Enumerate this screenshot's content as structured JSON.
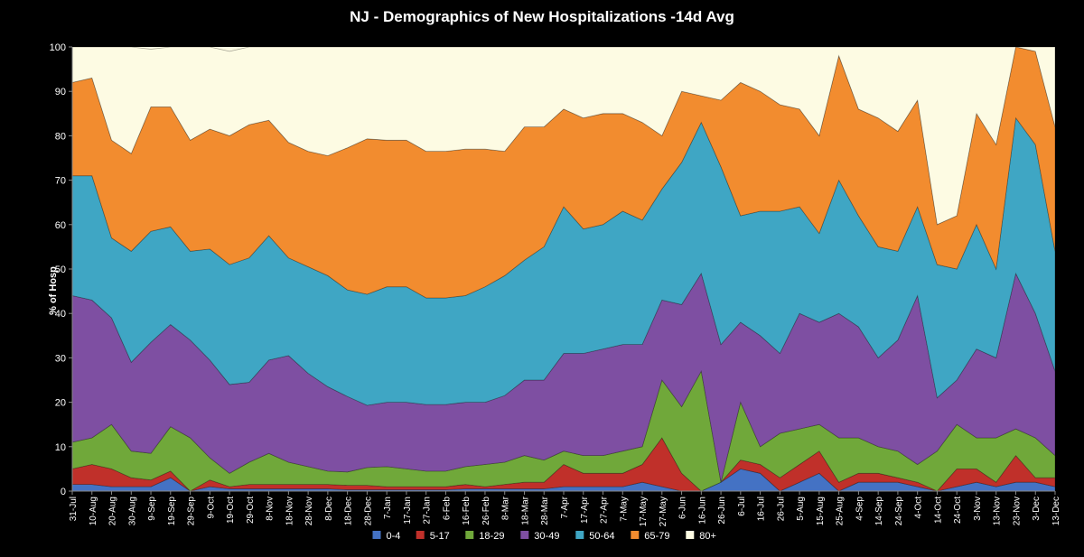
{
  "chart_data": {
    "type": "area",
    "stacked": true,
    "title": "NJ - Demographics of New Hospitalizations -14d Avg",
    "xlabel": "",
    "ylabel": "% of Hosp",
    "ylim": [
      0,
      100
    ],
    "yticks": [
      0,
      10,
      20,
      30,
      40,
      50,
      60,
      70,
      80,
      90,
      100
    ],
    "grid": false,
    "legend_position": "bottom",
    "x_tick_labels": [
      "31-Jul",
      "10-Aug",
      "20-Aug",
      "30-Aug",
      "9-Sep",
      "19-Sep",
      "29-Sep",
      "9-Oct",
      "19-Oct",
      "29-Oct",
      "8-Nov",
      "18-Nov",
      "28-Nov",
      "8-Dec",
      "18-Dec",
      "28-Dec",
      "7-Jan",
      "17-Jan",
      "27-Jan",
      "6-Feb",
      "16-Feb",
      "26-Feb",
      "8-Mar",
      "18-Mar",
      "28-Mar",
      "7-Apr",
      "17-Apr",
      "27-Apr",
      "7-May",
      "17-May",
      "27-May",
      "6-Jun",
      "16-Jun",
      "26-Jun",
      "6-Jul",
      "16-Jul",
      "26-Jul",
      "5-Aug",
      "15-Aug",
      "25-Aug",
      "4-Sep",
      "14-Sep",
      "24-Sep",
      "4-Oct",
      "14-Oct",
      "24-Oct",
      "3-Nov",
      "13-Nov",
      "23-Nov",
      "3-Dec",
      "13-Dec"
    ],
    "series": [
      {
        "name": "0-4",
        "color": "#4472C4",
        "values": [
          1.5,
          1.5,
          1,
          1,
          1,
          3,
          0,
          1,
          0.5,
          0.5,
          0.5,
          0.5,
          0.5,
          0.5,
          0.3,
          0.3,
          0.3,
          0.3,
          0.3,
          0.3,
          0.5,
          0.5,
          0.5,
          0.5,
          0.5,
          1,
          1,
          1,
          1,
          2,
          1,
          0,
          0,
          2,
          5,
          4,
          0,
          2,
          4,
          0,
          2,
          2,
          2,
          1,
          0,
          1,
          2,
          1,
          2,
          2,
          1
        ]
      },
      {
        "name": "5-17",
        "color": "#C0302A",
        "values": [
          3.5,
          4.5,
          4,
          2,
          1.5,
          1.5,
          0,
          1.5,
          0.5,
          1,
          1,
          1,
          1,
          1,
          1,
          1,
          0.7,
          0.7,
          0.7,
          0.7,
          1,
          0.5,
          1,
          1.5,
          1.5,
          5,
          3,
          3,
          3,
          4,
          11,
          4,
          0,
          0,
          2,
          2,
          3,
          4,
          5,
          2,
          2,
          2,
          1,
          1,
          0,
          4,
          3,
          1,
          6,
          1,
          2
        ]
      },
      {
        "name": "18-29",
        "color": "#70A83A",
        "values": [
          6,
          6,
          10,
          6,
          6,
          10,
          12,
          5,
          3,
          5,
          7,
          5,
          4,
          3,
          3,
          4,
          4.5,
          4,
          3.5,
          3.5,
          4,
          5,
          5,
          6,
          5,
          3,
          4,
          4,
          5,
          4,
          13,
          15,
          27,
          0,
          13,
          4,
          10,
          8,
          6,
          10,
          8,
          6,
          6,
          4,
          9,
          10,
          7,
          10,
          6,
          9,
          5
        ]
      },
      {
        "name": "30-49",
        "color": "#7E4FA2",
        "values": [
          33,
          31,
          24,
          20,
          25,
          23,
          22,
          22,
          20,
          18,
          21,
          24,
          21,
          19,
          17,
          14,
          14.5,
          15,
          15,
          15,
          14.5,
          14,
          15,
          17,
          18,
          22,
          23,
          24,
          24,
          23,
          18,
          23,
          22,
          31,
          18,
          25,
          18,
          26,
          23,
          28,
          25,
          20,
          25,
          38,
          12,
          10,
          20,
          18,
          35,
          28,
          19
        ]
      },
      {
        "name": "50-64",
        "color": "#3FA6C4",
        "values": [
          27,
          28,
          18,
          25,
          25,
          22,
          20,
          25,
          27,
          28,
          28,
          22,
          24,
          25,
          24,
          25,
          26,
          26,
          24,
          24,
          24,
          26,
          27,
          27,
          30,
          33,
          28,
          28,
          30,
          28,
          25,
          32,
          34,
          40,
          24,
          28,
          32,
          24,
          20,
          30,
          25,
          25,
          20,
          20,
          30,
          25,
          28,
          20,
          35,
          38,
          27
        ]
      },
      {
        "name": "65-79",
        "color": "#F28C2F",
        "values": [
          21,
          22,
          22,
          22,
          28,
          27,
          25,
          27,
          29,
          30,
          26,
          26,
          26,
          27,
          32,
          35,
          33,
          33,
          33,
          33,
          33,
          31,
          28,
          30,
          27,
          22,
          25,
          25,
          22,
          22,
          12,
          16,
          6,
          15,
          30,
          27,
          24,
          22,
          22,
          28,
          24,
          29,
          27,
          24,
          9,
          12,
          25,
          28,
          16,
          21,
          28
        ]
      },
      {
        "name": "80+",
        "color": "#FDFBE3",
        "values": [
          8,
          7,
          21,
          24,
          13,
          13.5,
          21,
          18.5,
          19,
          17.5,
          16.5,
          21.5,
          23.5,
          24.5,
          22.7,
          20.7,
          21,
          21,
          23.5,
          23.5,
          23,
          23,
          23.5,
          18,
          18,
          14,
          16,
          15,
          15,
          17,
          20,
          10,
          11,
          12,
          8,
          10,
          13,
          14,
          20,
          2,
          14,
          16,
          19,
          12,
          40,
          38,
          15,
          22,
          0,
          1,
          18
        ]
      }
    ]
  }
}
